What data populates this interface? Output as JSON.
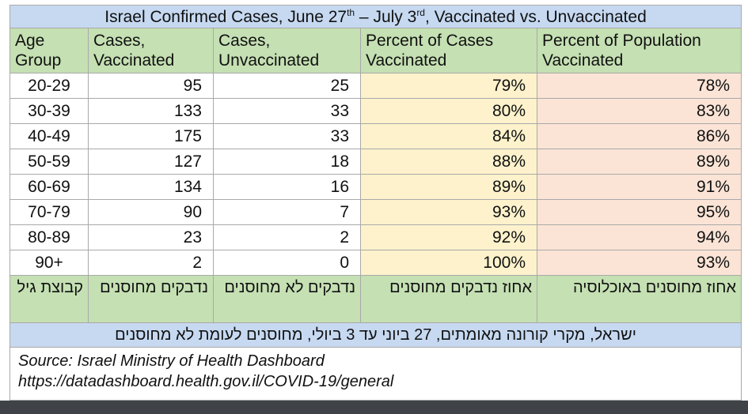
{
  "chart_data": {
    "type": "table",
    "title": "Israel Confirmed Cases, June 27",
    "title_sup_1": "th",
    "title_mid": " – July 3",
    "title_sup_2": "rd",
    "title_end": ", Vaccinated vs. Unvaccinated",
    "columns": [
      {
        "line1": "Age",
        "line2": "Group"
      },
      {
        "line1": "Cases,",
        "line2": "Vaccinated"
      },
      {
        "line1": "Cases,",
        "line2": "Unvaccinated"
      },
      {
        "line1": "Percent of Cases",
        "line2": "Vaccinated"
      },
      {
        "line1": "Percent of Population",
        "line2": "Vaccinated"
      }
    ],
    "rows": [
      {
        "age": "20-29",
        "cases_vax": "95",
        "cases_unvax": "25",
        "pct_cases_vax": "79%",
        "pct_pop_vax": "78%"
      },
      {
        "age": "30-39",
        "cases_vax": "133",
        "cases_unvax": "33",
        "pct_cases_vax": "80%",
        "pct_pop_vax": "83%"
      },
      {
        "age": "40-49",
        "cases_vax": "175",
        "cases_unvax": "33",
        "pct_cases_vax": "84%",
        "pct_pop_vax": "86%"
      },
      {
        "age": "50-59",
        "cases_vax": "127",
        "cases_unvax": "18",
        "pct_cases_vax": "88%",
        "pct_pop_vax": "89%"
      },
      {
        "age": "60-69",
        "cases_vax": "134",
        "cases_unvax": "16",
        "pct_cases_vax": "89%",
        "pct_pop_vax": "91%"
      },
      {
        "age": "70-79",
        "cases_vax": "90",
        "cases_unvax": "7",
        "pct_cases_vax": "93%",
        "pct_pop_vax": "95%"
      },
      {
        "age": "80-89",
        "cases_vax": "23",
        "cases_unvax": "2",
        "pct_cases_vax": "92%",
        "pct_pop_vax": "94%"
      },
      {
        "age": "90+",
        "cases_vax": "2",
        "cases_unvax": "0",
        "pct_cases_vax": "100%",
        "pct_pop_vax": "93%"
      }
    ],
    "hebrew_columns": [
      "קבוצת גיל",
      "נדבקים מחוסנים",
      "נדבקים לא מחוסנים",
      "אחוז נדבקים מחוסנים",
      "אחוז מחוסנים באוכלוסיה"
    ],
    "hebrew_title": "ישראל, מקרי קורונה מאומתים, 27 ביוני עד 3 ביולי, מחוסנים לעומת לא מחוסנים",
    "source_line1": "Source: Israel Ministry of Health Dashboard",
    "source_line2": "https://datadashboard.health.gov.il/COVID-19/general"
  },
  "colors": {
    "title_bg": "#c6d9f1",
    "header_bg": "#c5e0b3",
    "pct_cases_bg": "#fdf2cc",
    "pct_pop_bg": "#fbe4d6"
  }
}
